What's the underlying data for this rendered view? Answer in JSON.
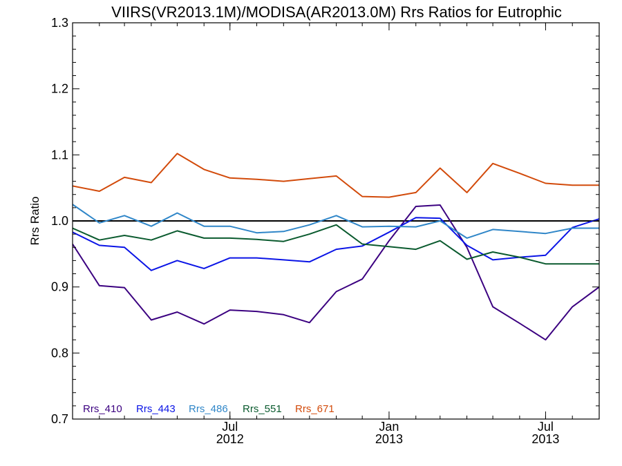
{
  "chart_data": {
    "type": "line",
    "title": "VIIRS(VR2013.1M)/MODISA(AR2013.0M)  Rrs Ratios for Eutrophic",
    "xlabel": "",
    "ylabel": "Rrs Ratio",
    "ylim": [
      0.7,
      1.3
    ],
    "y_ticks": [
      "0.7",
      "0.8",
      "0.9",
      "1.0",
      "1.1",
      "1.2",
      "1.3"
    ],
    "xlim": [
      "2012-01-01",
      "2013-09-01"
    ],
    "x_ticks": [
      {
        "month": "Jul",
        "year": "2012",
        "date": "2012-07-01"
      },
      {
        "month": "Jan",
        "year": "2013",
        "date": "2013-01-01"
      },
      {
        "month": "Jul",
        "year": "2013",
        "date": "2013-07-01"
      }
    ],
    "reference_line": {
      "y": 1.0,
      "color": "#000000"
    },
    "grid": false,
    "legend_position": "bottom-left",
    "x": [
      "2012-01-01",
      "2012-02-01",
      "2012-03-01",
      "2012-04-01",
      "2012-05-01",
      "2012-06-01",
      "2012-07-01",
      "2012-08-01",
      "2012-09-01",
      "2012-10-01",
      "2012-11-01",
      "2012-12-01",
      "2013-01-01",
      "2013-02-01",
      "2013-03-01",
      "2013-04-01",
      "2013-05-01",
      "2013-06-01",
      "2013-07-01",
      "2013-08-01",
      "2013-09-01"
    ],
    "series": [
      {
        "name": "Rrs_410",
        "color": "#3b0080",
        "values": [
          0.965,
          0.902,
          0.899,
          0.85,
          0.862,
          0.844,
          0.865,
          0.863,
          0.858,
          0.846,
          0.893,
          0.912,
          0.97,
          1.022,
          1.024,
          0.96,
          0.87,
          0.845,
          0.82,
          0.87,
          0.9
        ]
      },
      {
        "name": "Rrs_443",
        "color": "#0a14e6",
        "values": [
          0.983,
          0.963,
          0.96,
          0.925,
          0.94,
          0.928,
          0.944,
          0.944,
          0.941,
          0.938,
          0.957,
          0.962,
          0.983,
          1.005,
          1.004,
          0.963,
          0.941,
          0.945,
          0.948,
          0.99,
          1.003
        ]
      },
      {
        "name": "Rrs_486",
        "color": "#2f86c8",
        "values": [
          1.025,
          0.997,
          1.008,
          0.992,
          1.012,
          0.992,
          0.992,
          0.982,
          0.984,
          0.994,
          1.008,
          0.991,
          0.992,
          0.991,
          1.0,
          0.974,
          0.987,
          0.984,
          0.981,
          0.989,
          0.989
        ]
      },
      {
        "name": "Rrs_551",
        "color": "#0a5a2e",
        "values": [
          0.989,
          0.971,
          0.978,
          0.971,
          0.985,
          0.974,
          0.974,
          0.972,
          0.969,
          0.98,
          0.994,
          0.965,
          0.961,
          0.957,
          0.97,
          0.942,
          0.953,
          0.945,
          0.935,
          0.935,
          0.935
        ]
      },
      {
        "name": "Rrs_671",
        "color": "#d24a0a",
        "values": [
          1.053,
          1.045,
          1.066,
          1.058,
          1.102,
          1.078,
          1.065,
          1.063,
          1.06,
          1.064,
          1.068,
          1.037,
          1.036,
          1.043,
          1.08,
          1.043,
          1.087,
          1.072,
          1.057,
          1.054,
          1.054
        ]
      }
    ]
  }
}
